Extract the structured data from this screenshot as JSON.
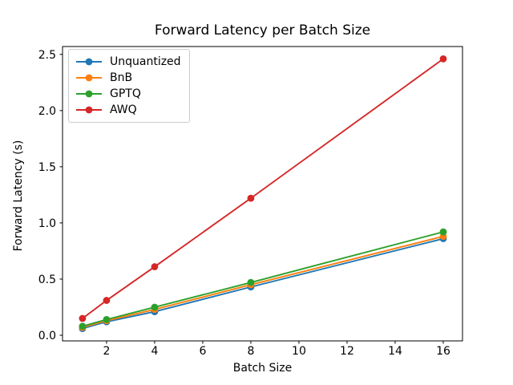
{
  "chart_data": {
    "type": "line",
    "title": "Forward Latency per Batch Size",
    "xlabel": "Batch Size",
    "ylabel": "Forward Latency (s)",
    "x": [
      1,
      2,
      4,
      8,
      16
    ],
    "series": [
      {
        "name": "Unquantized",
        "color": "#1f77b4",
        "values": [
          0.06,
          0.12,
          0.21,
          0.43,
          0.86
        ]
      },
      {
        "name": "BnB",
        "color": "#ff7f0e",
        "values": [
          0.07,
          0.13,
          0.23,
          0.45,
          0.88
        ]
      },
      {
        "name": "GPTQ",
        "color": "#2ca02c",
        "values": [
          0.08,
          0.14,
          0.25,
          0.47,
          0.92
        ]
      },
      {
        "name": "AWQ",
        "color": "#d62728",
        "values": [
          0.15,
          0.31,
          0.61,
          1.22,
          2.46
        ]
      }
    ],
    "xtick_labels": [
      "2",
      "4",
      "6",
      "8",
      "10",
      "12",
      "14",
      "16"
    ],
    "xticks": [
      2,
      4,
      6,
      8,
      10,
      12,
      14,
      16
    ],
    "ytick_labels": [
      "0.0",
      "0.5",
      "1.0",
      "1.5",
      "2.0",
      "2.5"
    ],
    "yticks": [
      0.0,
      0.5,
      1.0,
      1.5,
      2.0,
      2.5
    ],
    "xlim": [
      0.17,
      16.8
    ],
    "ylim": [
      -0.05,
      2.57
    ],
    "grid": false,
    "legend_position": "upper-left",
    "marker": "circle",
    "axis_color": "#000000",
    "background_color": "#ffffff"
  }
}
